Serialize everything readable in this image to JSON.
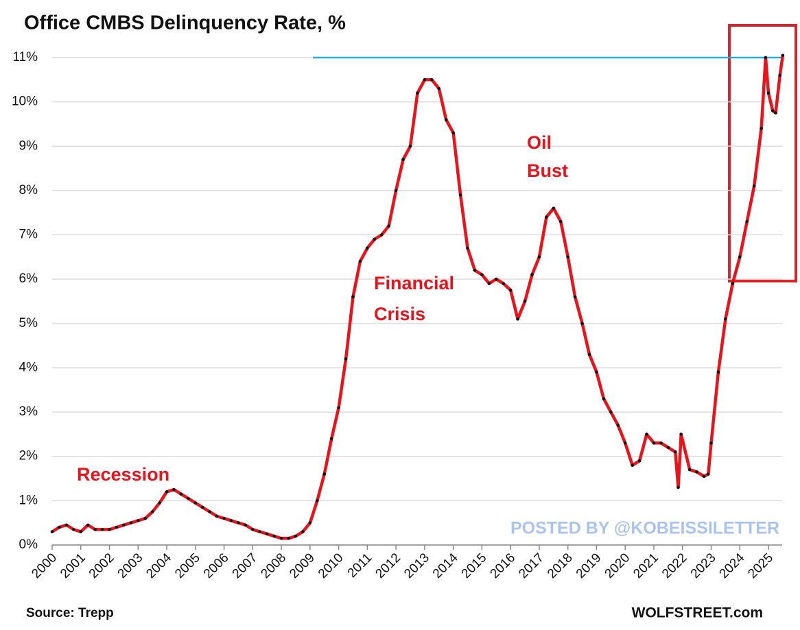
{
  "chart_data": {
    "type": "line",
    "title": "Office CMBS Delinquency Rate, %",
    "source": "Source: Trepp",
    "credit": "WOLFSTREET.com",
    "watermark": "POSTED BY @KOBEISSILETTER",
    "annotations": [
      "Recession",
      "Financial",
      "Crisis",
      "Oil",
      "Bust"
    ],
    "xlim": [
      2000,
      2025.55
    ],
    "xticks": [
      2000,
      2001,
      2002,
      2003,
      2004,
      2005,
      2006,
      2007,
      2008,
      2009,
      2010,
      2011,
      2012,
      2013,
      2014,
      2015,
      2016,
      2017,
      2018,
      2019,
      2020,
      2021,
      2022,
      2023,
      2024,
      2025
    ],
    "ylim": [
      0,
      11
    ],
    "yticks": [
      {
        "value": 0,
        "label": "0%"
      },
      {
        "value": 1,
        "label": "1%"
      },
      {
        "value": 2,
        "label": "2%"
      },
      {
        "value": 3,
        "label": "3%"
      },
      {
        "value": 4,
        "label": "4%"
      },
      {
        "value": 5,
        "label": "5%"
      },
      {
        "value": 6,
        "label": "6%"
      },
      {
        "value": 7,
        "label": "7%"
      },
      {
        "value": 8,
        "label": "8%"
      },
      {
        "value": 9,
        "label": "9%"
      },
      {
        "value": 10,
        "label": "10%"
      },
      {
        "value": 11,
        "label": "11%"
      }
    ],
    "grid": true,
    "hline": {
      "y": 11,
      "x_start": 2009.1,
      "color": "#29abe2"
    },
    "marker_color": "#111111",
    "series": [
      {
        "name": "Office CMBS Delinquency Rate",
        "color": "#e8131b",
        "x": [
          2000,
          2000.25,
          2000.5,
          2000.75,
          2001,
          2001.25,
          2001.5,
          2001.75,
          2002,
          2002.25,
          2002.5,
          2002.75,
          2003,
          2003.25,
          2003.5,
          2003.75,
          2004,
          2004.25,
          2004.5,
          2004.75,
          2005,
          2005.25,
          2005.5,
          2005.75,
          2006,
          2006.25,
          2006.5,
          2006.75,
          2007,
          2007.25,
          2007.5,
          2007.75,
          2008,
          2008.25,
          2008.5,
          2008.75,
          2009,
          2009.25,
          2009.5,
          2009.75,
          2010,
          2010.25,
          2010.5,
          2010.75,
          2011,
          2011.25,
          2011.5,
          2011.75,
          2012,
          2012.25,
          2012.5,
          2012.75,
          2013,
          2013.25,
          2013.5,
          2013.75,
          2014,
          2014.25,
          2014.5,
          2014.75,
          2015,
          2015.25,
          2015.5,
          2015.75,
          2016,
          2016.25,
          2016.5,
          2016.75,
          2017,
          2017.25,
          2017.5,
          2017.75,
          2018,
          2018.25,
          2018.5,
          2018.75,
          2019,
          2019.25,
          2019.5,
          2019.75,
          2020,
          2020.25,
          2020.5,
          2020.75,
          2021,
          2021.25,
          2021.5,
          2021.75,
          2021.85,
          2021.95,
          2022.25,
          2022.5,
          2022.75,
          2022.9,
          2023,
          2023.25,
          2023.5,
          2023.75,
          2024,
          2024.25,
          2024.5,
          2024.75,
          2024.9,
          2025,
          2025.15,
          2025.25,
          2025.4,
          2025.5
        ],
        "values": [
          0.3,
          0.4,
          0.45,
          0.35,
          0.3,
          0.45,
          0.35,
          0.35,
          0.35,
          0.4,
          0.45,
          0.5,
          0.55,
          0.6,
          0.75,
          0.95,
          1.2,
          1.25,
          1.15,
          1.05,
          0.95,
          0.85,
          0.75,
          0.65,
          0.6,
          0.55,
          0.5,
          0.45,
          0.35,
          0.3,
          0.25,
          0.2,
          0.15,
          0.15,
          0.2,
          0.3,
          0.5,
          1.0,
          1.6,
          2.4,
          3.1,
          4.2,
          5.6,
          6.4,
          6.7,
          6.9,
          7.0,
          7.2,
          8.0,
          8.7,
          9.0,
          10.2,
          10.5,
          10.5,
          10.3,
          9.6,
          9.3,
          7.9,
          6.7,
          6.2,
          6.1,
          5.9,
          6.0,
          5.9,
          5.75,
          5.1,
          5.5,
          6.1,
          6.5,
          7.4,
          7.6,
          7.3,
          6.5,
          5.6,
          5.0,
          4.3,
          3.9,
          3.3,
          3.0,
          2.7,
          2.3,
          1.8,
          1.9,
          2.5,
          2.3,
          2.3,
          2.2,
          2.1,
          1.3,
          2.5,
          1.7,
          1.65,
          1.55,
          1.6,
          2.3,
          3.9,
          5.1,
          5.9,
          6.5,
          7.3,
          8.1,
          9.4,
          11.0,
          10.2,
          9.8,
          9.75,
          10.6,
          11.05
        ]
      }
    ]
  }
}
